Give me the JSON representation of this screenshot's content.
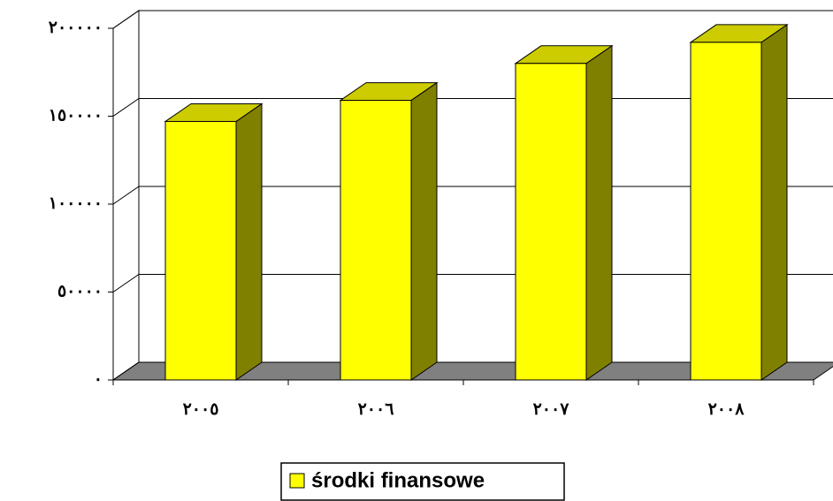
{
  "chart_data": {
    "type": "bar3d",
    "categories": [
      "٢٠٠٥",
      "٢٠٠٦",
      "٢٠٠٧",
      "٢٠٠٨"
    ],
    "series": [
      {
        "name": "środki finansowe",
        "color": "#ffff00",
        "values": [
          147000,
          159000,
          180000,
          192000
        ]
      }
    ],
    "ylim": [
      0,
      200000
    ],
    "yticks": [
      {
        "value": 0,
        "label": "٠"
      },
      {
        "value": 50000,
        "label": "٥٠٠٠٠"
      },
      {
        "value": 100000,
        "label": "١٠٠٠٠٠"
      },
      {
        "value": 150000,
        "label": "١٥٠٠٠٠"
      },
      {
        "value": 200000,
        "label": "٢٠٠٠٠٠"
      }
    ],
    "grid": true,
    "legend": "bottom"
  }
}
